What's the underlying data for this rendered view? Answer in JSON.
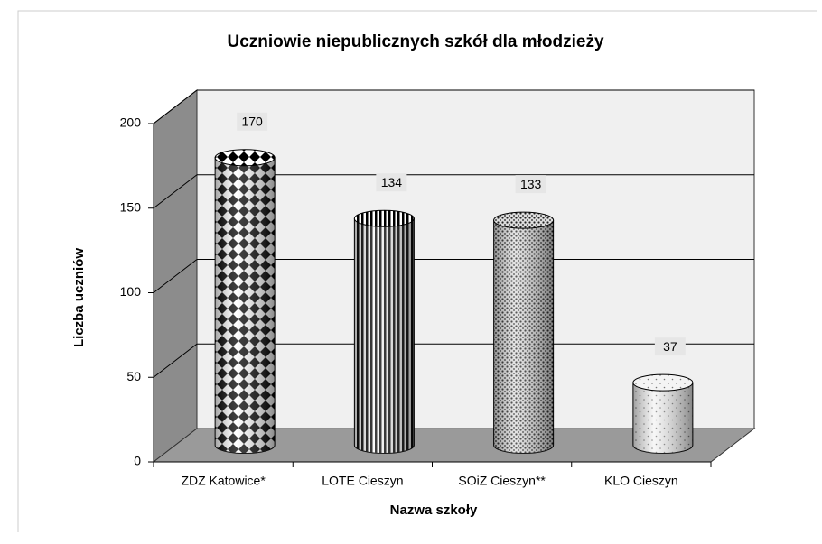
{
  "chart_data": {
    "type": "bar3d",
    "title": "Uczniowie niepublicznych szkół dla młodzieży",
    "x_label": "Nazwa szkoły",
    "y_label": "Liczba uczniów",
    "categories": [
      "ZDZ Katowice*",
      "LOTE Cieszyn",
      "SOiZ Cieszyn**",
      "KLO Cieszyn"
    ],
    "values": [
      170,
      134,
      133,
      37
    ],
    "ylim": [
      0,
      200
    ],
    "yticks": [
      0,
      50,
      100,
      150,
      200
    ],
    "grid": true
  }
}
